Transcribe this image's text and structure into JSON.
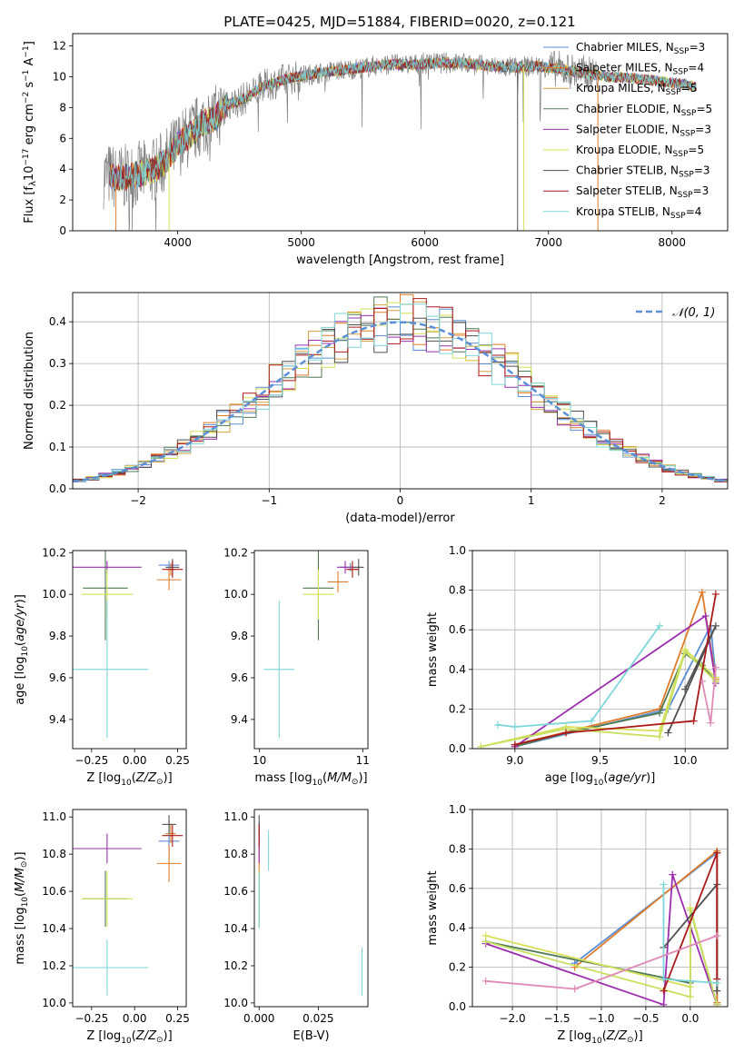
{
  "title": "PLATE=0425, MJD=51884, FIBERID=0020, z=0.121",
  "colors": [
    "#5b8fd6",
    "#e07b29",
    "#d4a040",
    "#4f7a55",
    "#9b2fae",
    "#d6e05a",
    "#505050",
    "#aa1a1a",
    "#7dd6da"
  ],
  "chart_data": [
    {
      "id": "spectrum",
      "type": "line",
      "xlabel": "wavelength [Angstrom, rest frame]",
      "ylabel": "Flux [f_λ10^-17 erg cm^-2 s^-1 A^-1]",
      "xlim": [
        3150,
        8450
      ],
      "ylim": [
        0,
        12.8
      ],
      "xticks": [
        4000,
        5000,
        6000,
        7000,
        8000
      ],
      "yticks": [
        0,
        2,
        4,
        6,
        8,
        10,
        12
      ],
      "grid": false,
      "legend_position": "right",
      "continuum": {
        "x": [
          3450,
          3500,
          3600,
          3700,
          3800,
          3900,
          4000,
          4100,
          4200,
          4300,
          4400,
          4500,
          4700,
          4900,
          5100,
          5300,
          5500,
          5700,
          5900,
          6100,
          6300,
          6500,
          6700,
          6900,
          7100,
          7300,
          7500,
          7700,
          7900,
          8100,
          8200
        ],
        "y": [
          3.6,
          3.4,
          3.5,
          3.7,
          3.9,
          4.5,
          5.6,
          6.2,
          7.0,
          7.3,
          8.2,
          8.4,
          9.4,
          9.9,
          10.2,
          10.4,
          10.6,
          10.8,
          10.8,
          10.9,
          10.9,
          10.7,
          10.6,
          10.7,
          10.5,
          10.2,
          10.0,
          9.9,
          9.7,
          9.5,
          9.3
        ]
      },
      "series": [
        {
          "name": "Chabrier MILES, N_SSP=3",
          "sub": "SSP",
          "sup": "",
          "label_pre": "Chabrier MILES, N",
          "label_post": "=3"
        },
        {
          "name": "Salpeter MILES, N_SSP=4",
          "label_pre": "Salpeter MILES, N",
          "label_post": "=4"
        },
        {
          "name": "Kroupa MILES, N_SSP=5",
          "label_pre": "Kroupa MILES, N",
          "label_post": "=5"
        },
        {
          "name": "Chabrier ELODIE, N_SSP=5",
          "label_pre": "Chabrier ELODIE, N",
          "label_post": "=5"
        },
        {
          "name": "Salpeter ELODIE, N_SSP=3",
          "label_pre": "Salpeter ELODIE, N",
          "label_post": "=3"
        },
        {
          "name": "Kroupa ELODIE, N_SSP=5",
          "label_pre": "Kroupa ELODIE, N",
          "label_post": "=5"
        },
        {
          "name": "Chabrier STELIB, N_SSP=3",
          "label_pre": "Chabrier STELIB, N",
          "label_post": "=3"
        },
        {
          "name": "Salpeter STELIB, N_SSP=3",
          "label_pre": "Salpeter STELIB, N",
          "label_post": "=3"
        },
        {
          "name": "Kroupa STELIB, N_SSP=4",
          "label_pre": "Kroupa STELIB, N",
          "label_post": "=4"
        }
      ],
      "legend_sub": "SSP"
    },
    {
      "id": "residuals",
      "type": "histogram",
      "xlabel": "(data-model)/error",
      "ylabel": "Normed distribution",
      "xlim": [
        -2.5,
        2.5
      ],
      "ylim": [
        0,
        0.47
      ],
      "xticks": [
        -2,
        -1,
        0,
        1,
        2
      ],
      "yticks": [
        0.0,
        0.1,
        0.2,
        0.3,
        0.4
      ],
      "grid": true,
      "legend": "𝒩(0, 1)",
      "legend_position": "top-right",
      "reference_curve": "normal(0,1)"
    },
    {
      "id": "age-vs-z",
      "type": "errorbar",
      "xlabel": "Z [log10(Z/Z⊙)]",
      "ylabel": "age  [log10(age/yr)]",
      "xlim": [
        -0.36,
        0.3
      ],
      "ylim": [
        9.26,
        10.21
      ],
      "xticks": [
        -0.25,
        0.0,
        0.25
      ],
      "yticks": [
        9.4,
        9.6,
        9.8,
        10.0,
        10.2
      ],
      "points": [
        {
          "x": 0.2,
          "xerr": 0.06,
          "y": 10.14,
          "yerr": 0.02
        },
        {
          "x": 0.2,
          "xerr": 0.07,
          "y": 10.07,
          "yerr": 0.05
        },
        {
          "x": 0.21,
          "xerr": 0.03,
          "y": 10.12,
          "yerr": 0.03
        },
        {
          "x": -0.17,
          "xerr": 0.13,
          "y": 10.03,
          "yerr": 0.25
        },
        {
          "x": -0.16,
          "xerr": 0.2,
          "y": 10.13,
          "yerr": 0.03
        },
        {
          "x": -0.16,
          "xerr": 0.15,
          "y": 10.0,
          "yerr": 0.12
        },
        {
          "x": 0.22,
          "xerr": 0.04,
          "y": 10.13,
          "yerr": 0.04
        },
        {
          "x": 0.22,
          "xerr": 0.06,
          "y": 10.12,
          "yerr": 0.04
        },
        {
          "x": -0.16,
          "xerr": 0.24,
          "y": 9.64,
          "yerr": 0.33
        }
      ]
    },
    {
      "id": "age-vs-mass",
      "type": "errorbar",
      "xlabel": "mass [log10(M/M⊙)]",
      "ylabel": "",
      "xlim": [
        9.95,
        11.05
      ],
      "ylim": [
        9.26,
        10.21
      ],
      "xticks": [
        10,
        11
      ],
      "yticks": [
        9.4,
        9.6,
        9.8,
        10.0,
        10.2
      ],
      "points": [
        {
          "x": 10.88,
          "xerr": 0.1,
          "y": 10.13,
          "yerr": 0.02
        },
        {
          "x": 10.76,
          "xerr": 0.1,
          "y": 10.06,
          "yerr": 0.05
        },
        {
          "x": 10.9,
          "xerr": 0.05,
          "y": 10.12,
          "yerr": 0.03
        },
        {
          "x": 10.57,
          "xerr": 0.15,
          "y": 10.03,
          "yerr": 0.25
        },
        {
          "x": 10.83,
          "xerr": 0.08,
          "y": 10.13,
          "yerr": 0.03
        },
        {
          "x": 10.57,
          "xerr": 0.15,
          "y": 10.0,
          "yerr": 0.12
        },
        {
          "x": 10.96,
          "xerr": 0.05,
          "y": 10.13,
          "yerr": 0.04
        },
        {
          "x": 10.9,
          "xerr": 0.06,
          "y": 10.12,
          "yerr": 0.04
        },
        {
          "x": 10.19,
          "xerr": 0.15,
          "y": 9.64,
          "yerr": 0.33
        }
      ]
    },
    {
      "id": "weight-vs-age",
      "type": "line",
      "xlabel": "age  [log10(age/yr)]",
      "ylabel": "mass weight",
      "xlim": [
        8.75,
        10.25
      ],
      "ylim": [
        0,
        1.0
      ],
      "xticks": [
        9.0,
        9.5,
        10.0
      ],
      "yticks": [
        0.0,
        0.2,
        0.4,
        0.6,
        0.8,
        1.0
      ],
      "grid": true,
      "series": [
        {
          "x": [
            9.0,
            9.9,
            10.15,
            10.18
          ],
          "y": [
            0.01,
            0.2,
            0.62,
            0.36
          ]
        },
        {
          "x": [
            9.0,
            9.85,
            10.1,
            10.18
          ],
          "y": [
            0.02,
            0.2,
            0.79,
            0.35
          ]
        },
        {
          "x": [
            9.0,
            9.3,
            9.85,
            10.0,
            10.1,
            10.18
          ],
          "y": [
            0.01,
            0.08,
            0.18,
            0.48,
            0.42,
            0.34
          ]
        },
        {
          "x": [
            8.8,
            9.3,
            9.85,
            10.0,
            10.18
          ],
          "y": [
            0.01,
            0.11,
            0.09,
            0.5,
            0.36
          ]
        },
        {
          "x": [
            9.0,
            10.12,
            10.18
          ],
          "y": [
            0.01,
            0.67,
            0.33
          ]
        },
        {
          "x": [
            8.8,
            9.3,
            9.85,
            10.0,
            10.18
          ],
          "y": [
            0.01,
            0.1,
            0.06,
            0.49,
            0.34
          ]
        },
        {
          "x": [
            9.9,
            10.18,
            10.0
          ],
          "y": [
            0.08,
            0.62,
            0.3
          ]
        },
        {
          "x": [
            9.0,
            9.3,
            10.05,
            10.18
          ],
          "y": [
            0.02,
            0.08,
            0.14,
            0.78
          ]
        },
        {
          "x": [
            8.9,
            9.0,
            9.45,
            9.85
          ],
          "y": [
            0.12,
            0.11,
            0.14,
            0.62
          ]
        },
        {
          "x": [
            10.1,
            10.15,
            10.18
          ],
          "y": [
            0.34,
            0.13,
            0.41
          ]
        }
      ]
    },
    {
      "id": "mass-vs-z",
      "type": "errorbar",
      "xlabel": "Z [log10(Z/Z⊙)]",
      "ylabel": "mass [log10(M/M⊙)]",
      "xlim": [
        -0.36,
        0.3
      ],
      "ylim": [
        9.98,
        11.04
      ],
      "xticks": [
        -0.25,
        0.0,
        0.25
      ],
      "yticks": [
        10.0,
        10.2,
        10.4,
        10.6,
        10.8,
        11.0
      ],
      "points": [
        {
          "x": 0.2,
          "xerr": 0.06,
          "y": 10.87,
          "yerr": 0.1
        },
        {
          "x": 0.2,
          "xerr": 0.07,
          "y": 10.75,
          "yerr": 0.1
        },
        {
          "x": 0.21,
          "xerr": 0.03,
          "y": 10.91,
          "yerr": 0.05
        },
        {
          "x": -0.17,
          "xerr": 0.13,
          "y": 10.56,
          "yerr": 0.15
        },
        {
          "x": -0.16,
          "xerr": 0.2,
          "y": 10.83,
          "yerr": 0.08
        },
        {
          "x": -0.16,
          "xerr": 0.15,
          "y": 10.56,
          "yerr": 0.15
        },
        {
          "x": 0.2,
          "xerr": 0.04,
          "y": 10.96,
          "yerr": 0.05
        },
        {
          "x": 0.22,
          "xerr": 0.06,
          "y": 10.9,
          "yerr": 0.06
        },
        {
          "x": -0.16,
          "xerr": 0.24,
          "y": 10.19,
          "yerr": 0.15
        }
      ]
    },
    {
      "id": "mass-vs-ebv",
      "type": "errorbar",
      "xlabel": "E(B-V)",
      "ylabel": "",
      "xlim": [
        -0.002,
        0.046
      ],
      "ylim": [
        9.98,
        11.04
      ],
      "xticks": [
        0.0,
        0.025
      ],
      "yticks": [
        10.0,
        10.2,
        10.4,
        10.6,
        10.8,
        11.0
      ],
      "points": [
        {
          "x": 0.0,
          "xerr": 0.0,
          "y": 10.87,
          "yerr": 0.1
        },
        {
          "x": 0.0,
          "xerr": 0.0,
          "y": 10.75,
          "yerr": 0.1
        },
        {
          "x": 0.0,
          "xerr": 0.0,
          "y": 10.91,
          "yerr": 0.05
        },
        {
          "x": 0.0,
          "xerr": 0.0,
          "y": 10.56,
          "yerr": 0.15
        },
        {
          "x": 0.0,
          "xerr": 0.0,
          "y": 10.83,
          "yerr": 0.08
        },
        {
          "x": 0.0,
          "xerr": 0.0,
          "y": 10.56,
          "yerr": 0.15
        },
        {
          "x": 0.0,
          "xerr": 0.0,
          "y": 10.96,
          "yerr": 0.05
        },
        {
          "x": 0.0,
          "xerr": 0.0,
          "y": 10.9,
          "yerr": 0.06
        },
        {
          "x": 0.0,
          "xerr": 0.0,
          "y": 10.55,
          "yerr": 0.15
        },
        {
          "x": 0.004,
          "xerr": 0.0,
          "y": 10.82,
          "yerr": 0.11
        },
        {
          "x": 0.0435,
          "xerr": 0.0,
          "y": 10.17,
          "yerr": 0.13
        }
      ]
    },
    {
      "id": "weight-vs-z",
      "type": "line",
      "xlabel": "Z [log10(Z/Z⊙)]",
      "ylabel": "mass weight",
      "xlim": [
        -2.45,
        0.42
      ],
      "ylim": [
        0,
        1.0
      ],
      "xticks": [
        -2.0,
        -1.5,
        -1.0,
        -0.5,
        0.0
      ],
      "yticks": [
        0.0,
        0.2,
        0.4,
        0.6,
        0.8,
        1.0
      ],
      "grid": true,
      "series": [
        {
          "x": [
            -1.3,
            0.3,
            0.3
          ],
          "y": [
            0.22,
            0.78,
            0.01
          ]
        },
        {
          "x": [
            -1.3,
            0.3,
            0.3
          ],
          "y": [
            0.2,
            0.79,
            0.02
          ]
        },
        {
          "x": [
            -2.3,
            0.0,
            0.0,
            0.3
          ],
          "y": [
            0.33,
            0.12,
            0.49,
            0.01
          ]
        },
        {
          "x": [
            -2.3,
            0.0,
            0.0,
            0.3
          ],
          "y": [
            0.36,
            0.1,
            0.5,
            0.01
          ]
        },
        {
          "x": [
            -2.3,
            -0.3,
            -0.2,
            0.3
          ],
          "y": [
            0.32,
            0.01,
            0.67,
            0.01
          ]
        },
        {
          "x": [
            -2.3,
            0.0,
            0.0,
            0.3
          ],
          "y": [
            0.33,
            0.05,
            0.49,
            0.01
          ]
        },
        {
          "x": [
            -0.3,
            0.3,
            0.3
          ],
          "y": [
            0.3,
            0.62,
            0.08
          ]
        },
        {
          "x": [
            -0.3,
            0.3,
            0.3
          ],
          "y": [
            0.08,
            0.78,
            0.14
          ]
        },
        {
          "x": [
            -0.3,
            -0.3,
            0.3
          ],
          "y": [
            0.62,
            0.14,
            0.12
          ]
        },
        {
          "x": [
            -2.3,
            -1.3,
            0.3
          ],
          "y": [
            0.13,
            0.09,
            0.36
          ]
        }
      ]
    }
  ]
}
